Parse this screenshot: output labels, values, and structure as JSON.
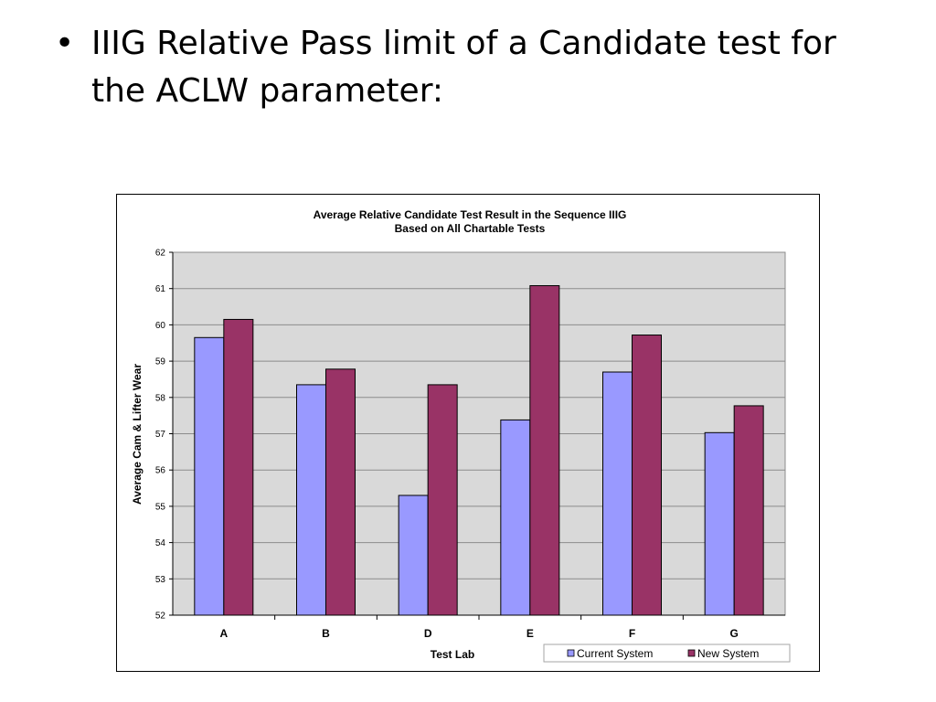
{
  "slide": {
    "bullet_symbol": "•",
    "bullet_text": "IIIG Relative Pass limit of a Candidate test for the ACLW parameter:"
  },
  "chart_data": {
    "type": "bar",
    "title": "Average Relative Candidate Test Result in the Sequence IIIG",
    "subtitle": "Based on All Chartable Tests",
    "xlabel": "Test Lab",
    "ylabel": "Average Cam & Lifter Wear",
    "categories": [
      "A",
      "B",
      "D",
      "E",
      "F",
      "G"
    ],
    "ylim": [
      52,
      62
    ],
    "yticks": [
      52,
      53,
      54,
      55,
      56,
      57,
      58,
      59,
      60,
      61,
      62
    ],
    "grid": true,
    "legend_position": "bottom-right",
    "series": [
      {
        "name": "Current System",
        "color": "#9999ff",
        "values": [
          59.65,
          58.35,
          55.3,
          57.38,
          58.7,
          57.03
        ]
      },
      {
        "name": "New System",
        "color": "#993366",
        "values": [
          60.15,
          58.78,
          58.35,
          61.08,
          59.72,
          57.77
        ]
      }
    ]
  },
  "colors": {
    "plot_background": "#d9d9d9",
    "gridline": "#8c8c8c",
    "bar_outline": "#000000"
  }
}
